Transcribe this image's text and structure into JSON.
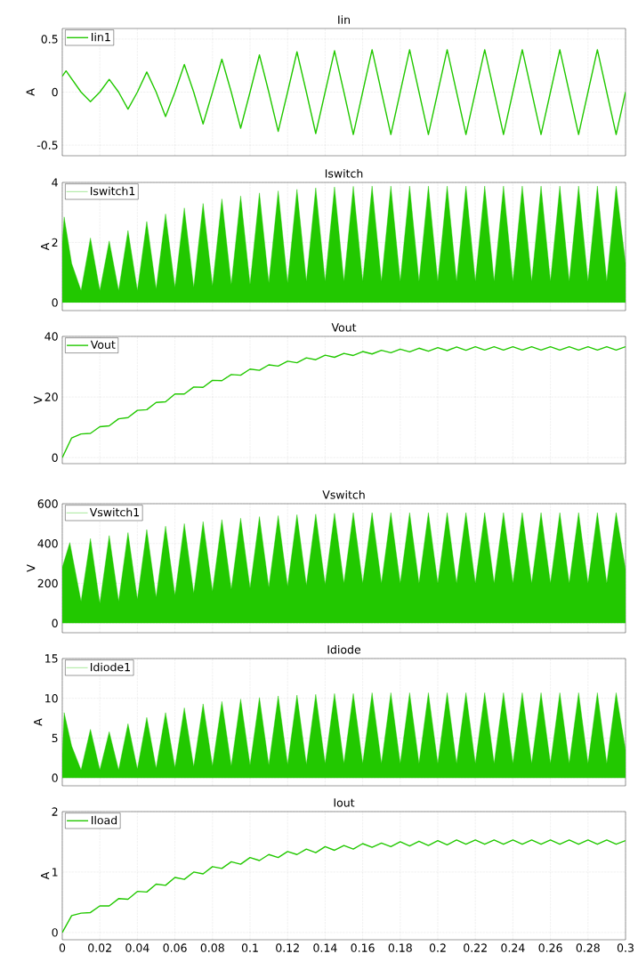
{
  "chart_data": [
    {
      "type": "line",
      "title": "Iin",
      "ylabel": "A",
      "grid": true,
      "legend": "top left",
      "tick_labels": "y",
      "xlim": [
        0,
        0.3
      ],
      "ylim": [
        -0.6,
        0.6
      ],
      "yticks": [
        -0.5,
        0,
        0.5
      ],
      "xticks": [
        0,
        0.02,
        0.04,
        0.06,
        0.08,
        0.1,
        0.12,
        0.14,
        0.16,
        0.18,
        0.2,
        0.22,
        0.24,
        0.26,
        0.28,
        0.3
      ],
      "x": [
        0,
        0.002,
        0.01,
        0.015,
        0.02,
        0.025,
        0.03,
        0.035,
        0.04,
        0.045,
        0.05,
        0.055,
        0.06,
        0.065,
        0.07,
        0.075,
        0.08,
        0.085,
        0.09,
        0.095,
        0.1,
        0.105,
        0.11,
        0.115,
        0.12,
        0.125,
        0.13,
        0.135,
        0.14,
        0.145,
        0.15,
        0.155,
        0.16,
        0.165,
        0.17,
        0.175,
        0.18,
        0.185,
        0.19,
        0.195,
        0.2,
        0.205,
        0.21,
        0.215,
        0.22,
        0.225,
        0.23,
        0.235,
        0.24,
        0.245,
        0.25,
        0.255,
        0.26,
        0.265,
        0.27,
        0.275,
        0.28,
        0.285,
        0.29,
        0.295,
        0.3
      ],
      "series": [
        {
          "name": "Iin1",
          "color": "#22c800",
          "values": [
            0.15,
            0.2,
            0,
            -0.09,
            0,
            0.12,
            0,
            -0.16,
            0,
            0.19,
            0,
            -0.23,
            0,
            0.26,
            0,
            -0.3,
            0,
            0.31,
            0,
            -0.34,
            0,
            0.35,
            0,
            -0.37,
            0,
            0.38,
            0,
            -0.39,
            0,
            0.39,
            0,
            -0.4,
            0,
            0.4,
            0,
            -0.4,
            0,
            0.4,
            0,
            -0.4,
            0,
            0.4,
            0,
            -0.4,
            0,
            0.4,
            0,
            -0.4,
            0,
            0.4,
            0,
            -0.4,
            0,
            0.4,
            0,
            -0.4,
            0,
            0.4,
            0,
            -0.4,
            0
          ]
        }
      ]
    },
    {
      "type": "area",
      "title": "Iswitch",
      "ylabel": "A",
      "grid": true,
      "legend": "top left",
      "tick_labels": "y",
      "xlim": [
        0,
        0.3
      ],
      "ylim": [
        -0.27,
        4
      ],
      "yticks": [
        0,
        2,
        4
      ],
      "xticks": [
        0,
        0.02,
        0.04,
        0.06,
        0.08,
        0.1,
        0.12,
        0.14,
        0.16,
        0.18,
        0.2,
        0.22,
        0.24,
        0.26,
        0.28,
        0.3
      ],
      "x": [
        0,
        0.001,
        0.005,
        0.01,
        0.015,
        0.02,
        0.025,
        0.03,
        0.035,
        0.04,
        0.045,
        0.05,
        0.055,
        0.06,
        0.065,
        0.07,
        0.075,
        0.08,
        0.085,
        0.09,
        0.095,
        0.1,
        0.105,
        0.11,
        0.115,
        0.12,
        0.125,
        0.13,
        0.135,
        0.14,
        0.145,
        0.15,
        0.155,
        0.16,
        0.165,
        0.17,
        0.175,
        0.18,
        0.185,
        0.19,
        0.195,
        0.2,
        0.205,
        0.21,
        0.215,
        0.22,
        0.225,
        0.23,
        0.235,
        0.24,
        0.245,
        0.25,
        0.255,
        0.26,
        0.265,
        0.27,
        0.275,
        0.28,
        0.285,
        0.29,
        0.295,
        0.3
      ],
      "series": [
        {
          "name": "Iswitch1",
          "color": "#22c800",
          "values": [
            2.0,
            2.85,
            1.3,
            0.4,
            2.15,
            0.4,
            2.05,
            0.4,
            2.4,
            0.4,
            2.7,
            0.45,
            2.95,
            0.5,
            3.15,
            0.5,
            3.3,
            0.55,
            3.45,
            0.6,
            3.55,
            0.6,
            3.65,
            0.65,
            3.72,
            0.65,
            3.77,
            0.7,
            3.82,
            0.7,
            3.85,
            0.7,
            3.87,
            0.7,
            3.88,
            0.7,
            3.88,
            0.7,
            3.88,
            0.7,
            3.88,
            0.7,
            3.88,
            0.7,
            3.88,
            0.7,
            3.88,
            0.7,
            3.88,
            0.7,
            3.88,
            0.7,
            3.88,
            0.7,
            3.88,
            0.7,
            3.88,
            0.7,
            3.88,
            0.7,
            3.88,
            1.3
          ]
        }
      ]
    },
    {
      "type": "line",
      "title": "Vout",
      "ylabel": "V",
      "grid": true,
      "legend": "top left",
      "tick_labels": "y",
      "xlim": [
        0,
        0.3
      ],
      "ylim": [
        -2,
        40
      ],
      "yticks": [
        0,
        20,
        40
      ],
      "xticks": [
        0,
        0.02,
        0.04,
        0.06,
        0.08,
        0.1,
        0.12,
        0.14,
        0.16,
        0.18,
        0.2,
        0.22,
        0.24,
        0.26,
        0.28,
        0.3
      ],
      "x": [
        0,
        0.005,
        0.01,
        0.015,
        0.02,
        0.025,
        0.03,
        0.035,
        0.04,
        0.045,
        0.05,
        0.055,
        0.06,
        0.065,
        0.07,
        0.075,
        0.08,
        0.085,
        0.09,
        0.095,
        0.1,
        0.105,
        0.11,
        0.115,
        0.12,
        0.125,
        0.13,
        0.135,
        0.14,
        0.145,
        0.15,
        0.155,
        0.16,
        0.165,
        0.17,
        0.175,
        0.18,
        0.185,
        0.19,
        0.195,
        0.2,
        0.205,
        0.21,
        0.215,
        0.22,
        0.225,
        0.23,
        0.235,
        0.24,
        0.245,
        0.25,
        0.255,
        0.26,
        0.265,
        0.27,
        0.275,
        0.28,
        0.285,
        0.29,
        0.295,
        0.3
      ],
      "series": [
        {
          "name": "Vout",
          "color": "#22c800",
          "values": [
            0,
            6.5,
            7.8,
            8.0,
            10.2,
            10.5,
            12.8,
            13.2,
            15.6,
            15.8,
            18.2,
            18.4,
            21.0,
            21.0,
            23.3,
            23.2,
            25.5,
            25.4,
            27.4,
            27.2,
            29.2,
            28.8,
            30.6,
            30.2,
            31.8,
            31.3,
            32.9,
            32.3,
            33.8,
            33.1,
            34.4,
            33.7,
            35.0,
            34.2,
            35.4,
            34.6,
            35.8,
            34.9,
            36.1,
            35.1,
            36.3,
            35.3,
            36.5,
            35.4,
            36.6,
            35.5,
            36.6,
            35.5,
            36.6,
            35.5,
            36.6,
            35.5,
            36.6,
            35.5,
            36.6,
            35.5,
            36.6,
            35.5,
            36.6,
            35.5,
            36.6
          ]
        }
      ]
    },
    {
      "type": "area",
      "title": "Vswitch",
      "ylabel": "V",
      "grid": true,
      "legend": "top left",
      "tick_labels": "y",
      "xlim": [
        0,
        0.3
      ],
      "ylim": [
        -48,
        600
      ],
      "yticks": [
        0,
        200,
        400,
        600
      ],
      "xticks": [
        0,
        0.02,
        0.04,
        0.06,
        0.08,
        0.1,
        0.12,
        0.14,
        0.16,
        0.18,
        0.2,
        0.22,
        0.24,
        0.26,
        0.28,
        0.3
      ],
      "x": [
        0,
        0.004,
        0.01,
        0.015,
        0.02,
        0.025,
        0.03,
        0.035,
        0.04,
        0.045,
        0.05,
        0.055,
        0.06,
        0.065,
        0.07,
        0.075,
        0.08,
        0.085,
        0.09,
        0.095,
        0.1,
        0.105,
        0.11,
        0.115,
        0.12,
        0.125,
        0.13,
        0.135,
        0.14,
        0.145,
        0.15,
        0.155,
        0.16,
        0.165,
        0.17,
        0.175,
        0.18,
        0.185,
        0.19,
        0.195,
        0.2,
        0.205,
        0.21,
        0.215,
        0.22,
        0.225,
        0.23,
        0.235,
        0.24,
        0.245,
        0.25,
        0.255,
        0.26,
        0.265,
        0.27,
        0.275,
        0.28,
        0.285,
        0.29,
        0.295,
        0.3
      ],
      "series": [
        {
          "name": "Vswitch1",
          "color": "#22c800",
          "values": [
            280,
            405,
            110,
            425,
            100,
            440,
            110,
            455,
            120,
            470,
            130,
            487,
            140,
            500,
            150,
            510,
            160,
            520,
            170,
            527,
            175,
            535,
            180,
            540,
            185,
            545,
            190,
            548,
            195,
            552,
            200,
            555,
            200,
            555,
            200,
            555,
            200,
            555,
            200,
            555,
            200,
            555,
            200,
            555,
            200,
            555,
            200,
            555,
            200,
            555,
            200,
            555,
            200,
            555,
            200,
            555,
            200,
            555,
            200,
            555,
            270
          ]
        }
      ]
    },
    {
      "type": "area",
      "title": "Idiode",
      "ylabel": "A",
      "grid": true,
      "legend": "top left",
      "tick_labels": "y",
      "xlim": [
        0,
        0.3
      ],
      "ylim": [
        -1,
        15
      ],
      "yticks": [
        0,
        5,
        10,
        15
      ],
      "xticks": [
        0,
        0.02,
        0.04,
        0.06,
        0.08,
        0.1,
        0.12,
        0.14,
        0.16,
        0.18,
        0.2,
        0.22,
        0.24,
        0.26,
        0.28,
        0.3
      ],
      "x": [
        0,
        0.001,
        0.005,
        0.01,
        0.015,
        0.02,
        0.025,
        0.03,
        0.035,
        0.04,
        0.045,
        0.05,
        0.055,
        0.06,
        0.065,
        0.07,
        0.075,
        0.08,
        0.085,
        0.09,
        0.095,
        0.1,
        0.105,
        0.11,
        0.115,
        0.12,
        0.125,
        0.13,
        0.135,
        0.14,
        0.145,
        0.15,
        0.155,
        0.16,
        0.165,
        0.17,
        0.175,
        0.18,
        0.185,
        0.19,
        0.195,
        0.2,
        0.205,
        0.21,
        0.215,
        0.22,
        0.225,
        0.23,
        0.235,
        0.24,
        0.245,
        0.25,
        0.255,
        0.26,
        0.265,
        0.27,
        0.275,
        0.28,
        0.285,
        0.29,
        0.295,
        0.3
      ],
      "series": [
        {
          "name": "Idiode1",
          "color": "#22c800",
          "values": [
            3,
            8.2,
            4,
            1,
            6.1,
            1,
            5.8,
            1,
            6.8,
            1.1,
            7.6,
            1.2,
            8.2,
            1.3,
            8.8,
            1.4,
            9.3,
            1.5,
            9.6,
            1.5,
            9.9,
            1.6,
            10.1,
            1.6,
            10.3,
            1.7,
            10.4,
            1.7,
            10.5,
            1.8,
            10.6,
            1.8,
            10.6,
            1.8,
            10.7,
            1.8,
            10.7,
            1.8,
            10.7,
            1.8,
            10.7,
            1.8,
            10.7,
            1.8,
            10.7,
            1.8,
            10.7,
            1.8,
            10.7,
            1.8,
            10.7,
            1.8,
            10.7,
            1.8,
            10.7,
            1.8,
            10.7,
            1.8,
            10.7,
            1.8,
            10.7,
            3.5
          ]
        }
      ]
    },
    {
      "type": "line",
      "title": "Iout",
      "ylabel": "A",
      "grid": true,
      "legend": "top left",
      "xlim": [
        0,
        0.3
      ],
      "ylim": [
        -0.12,
        2
      ],
      "yticks": [
        0,
        1,
        2
      ],
      "xticks": [
        0,
        0.02,
        0.04,
        0.06,
        0.08,
        0.1,
        0.12,
        0.14,
        0.16,
        0.18,
        0.2,
        0.22,
        0.24,
        0.26,
        0.28,
        0.3
      ],
      "x": [
        0,
        0.005,
        0.01,
        0.015,
        0.02,
        0.025,
        0.03,
        0.035,
        0.04,
        0.045,
        0.05,
        0.055,
        0.06,
        0.065,
        0.07,
        0.075,
        0.08,
        0.085,
        0.09,
        0.095,
        0.1,
        0.105,
        0.11,
        0.115,
        0.12,
        0.125,
        0.13,
        0.135,
        0.14,
        0.145,
        0.15,
        0.155,
        0.16,
        0.165,
        0.17,
        0.175,
        0.18,
        0.185,
        0.19,
        0.195,
        0.2,
        0.205,
        0.21,
        0.215,
        0.22,
        0.225,
        0.23,
        0.235,
        0.24,
        0.245,
        0.25,
        0.255,
        0.26,
        0.265,
        0.27,
        0.275,
        0.28,
        0.285,
        0.29,
        0.295,
        0.3
      ],
      "series": [
        {
          "name": "Iload",
          "color": "#22c800",
          "values": [
            0,
            0.28,
            0.32,
            0.33,
            0.44,
            0.44,
            0.56,
            0.55,
            0.68,
            0.67,
            0.8,
            0.78,
            0.91,
            0.88,
            1.0,
            0.97,
            1.09,
            1.06,
            1.17,
            1.13,
            1.24,
            1.19,
            1.29,
            1.24,
            1.34,
            1.29,
            1.38,
            1.32,
            1.42,
            1.36,
            1.44,
            1.38,
            1.47,
            1.41,
            1.48,
            1.42,
            1.5,
            1.43,
            1.51,
            1.44,
            1.52,
            1.45,
            1.53,
            1.46,
            1.53,
            1.46,
            1.53,
            1.46,
            1.53,
            1.46,
            1.53,
            1.46,
            1.53,
            1.46,
            1.53,
            1.46,
            1.53,
            1.46,
            1.53,
            1.46,
            1.52
          ]
        }
      ]
    }
  ]
}
